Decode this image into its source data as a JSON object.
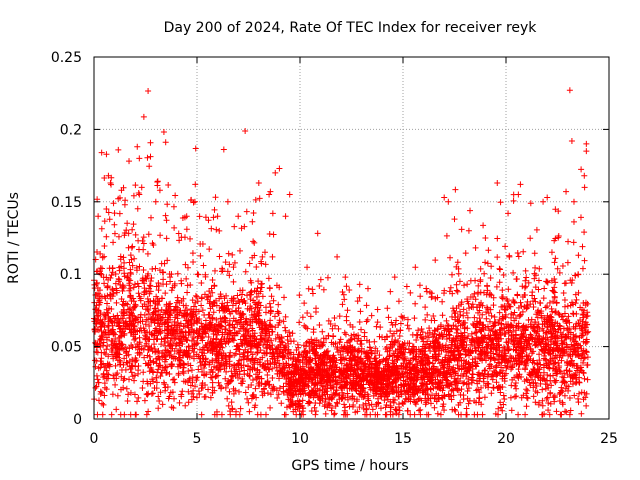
{
  "chart_data": {
    "type": "scatter",
    "title": "Day 200 of 2024, Rate Of TEC Index for receiver reyk",
    "xlabel": "GPS time / hours",
    "ylabel": "ROTI / TECUs",
    "xlim": [
      0,
      25
    ],
    "ylim": [
      0,
      0.25
    ],
    "x_ticks": [
      "0",
      "5",
      "10",
      "15",
      "20",
      "25"
    ],
    "y_ticks": [
      "0",
      "0.05",
      "0.1",
      "0.15",
      "0.2",
      "0.25"
    ],
    "grid": true,
    "marker": "+",
    "color": "#ff0000",
    "x_coverage": [
      0,
      24
    ],
    "trend": [
      {
        "x": 0,
        "y": 0.055
      },
      {
        "x": 1,
        "y": 0.06
      },
      {
        "x": 2,
        "y": 0.058
      },
      {
        "x": 3,
        "y": 0.052
      },
      {
        "x": 4,
        "y": 0.05
      },
      {
        "x": 5,
        "y": 0.05
      },
      {
        "x": 6,
        "y": 0.052
      },
      {
        "x": 7,
        "y": 0.05
      },
      {
        "x": 8,
        "y": 0.048
      },
      {
        "x": 9,
        "y": 0.04
      },
      {
        "x": 9.5,
        "y": 0.025
      },
      {
        "x": 10,
        "y": 0.025
      },
      {
        "x": 11,
        "y": 0.03
      },
      {
        "x": 12,
        "y": 0.03
      },
      {
        "x": 13,
        "y": 0.028
      },
      {
        "x": 14,
        "y": 0.025
      },
      {
        "x": 15,
        "y": 0.03
      },
      {
        "x": 16,
        "y": 0.03
      },
      {
        "x": 17,
        "y": 0.035
      },
      {
        "x": 18,
        "y": 0.045
      },
      {
        "x": 19,
        "y": 0.045
      },
      {
        "x": 20,
        "y": 0.045
      },
      {
        "x": 21,
        "y": 0.045
      },
      {
        "x": 22,
        "y": 0.045
      },
      {
        "x": 23,
        "y": 0.045
      },
      {
        "x": 24,
        "y": 0.045
      }
    ],
    "peaks": [
      {
        "x": 0.2,
        "y": 0.14
      },
      {
        "x": 0.6,
        "y": 0.145
      },
      {
        "x": 0.7,
        "y": 0.168
      },
      {
        "x": 0.8,
        "y": 0.163
      },
      {
        "x": 1.5,
        "y": 0.148
      },
      {
        "x": 2.1,
        "y": 0.188
      },
      {
        "x": 2.2,
        "y": 0.18
      },
      {
        "x": 2.2,
        "y": 0.155
      },
      {
        "x": 3.0,
        "y": 0.15
      },
      {
        "x": 3.2,
        "y": 0.158
      },
      {
        "x": 4.5,
        "y": 0.14
      },
      {
        "x": 4.9,
        "y": 0.15
      },
      {
        "x": 6.0,
        "y": 0.14
      },
      {
        "x": 6.5,
        "y": 0.15
      },
      {
        "x": 7.0,
        "y": 0.14
      },
      {
        "x": 8.0,
        "y": 0.163
      },
      {
        "x": 8.5,
        "y": 0.155
      },
      {
        "x": 8.8,
        "y": 0.17
      },
      {
        "x": 9.0,
        "y": 0.173
      },
      {
        "x": 9.5,
        "y": 0.155
      },
      {
        "x": 9.3,
        "y": 0.14
      },
      {
        "x": 11.8,
        "y": 0.112
      },
      {
        "x": 12.2,
        "y": 0.098
      },
      {
        "x": 12.9,
        "y": 0.093
      },
      {
        "x": 13.3,
        "y": 0.09
      },
      {
        "x": 14.6,
        "y": 0.098
      },
      {
        "x": 17.0,
        "y": 0.153
      },
      {
        "x": 17.2,
        "y": 0.15
      },
      {
        "x": 17.5,
        "y": 0.138
      },
      {
        "x": 18.2,
        "y": 0.13
      },
      {
        "x": 19.0,
        "y": 0.125
      },
      {
        "x": 20.1,
        "y": 0.142
      },
      {
        "x": 20.6,
        "y": 0.155
      },
      {
        "x": 20.7,
        "y": 0.162
      },
      {
        "x": 21.8,
        "y": 0.15
      },
      {
        "x": 22.0,
        "y": 0.153
      },
      {
        "x": 23.1,
        "y": 0.227
      },
      {
        "x": 23.2,
        "y": 0.192
      },
      {
        "x": 23.3,
        "y": 0.15
      },
      {
        "x": 23.9,
        "y": 0.19
      },
      {
        "x": 23.9,
        "y": 0.185
      },
      {
        "x": 23.8,
        "y": 0.168
      }
    ]
  }
}
